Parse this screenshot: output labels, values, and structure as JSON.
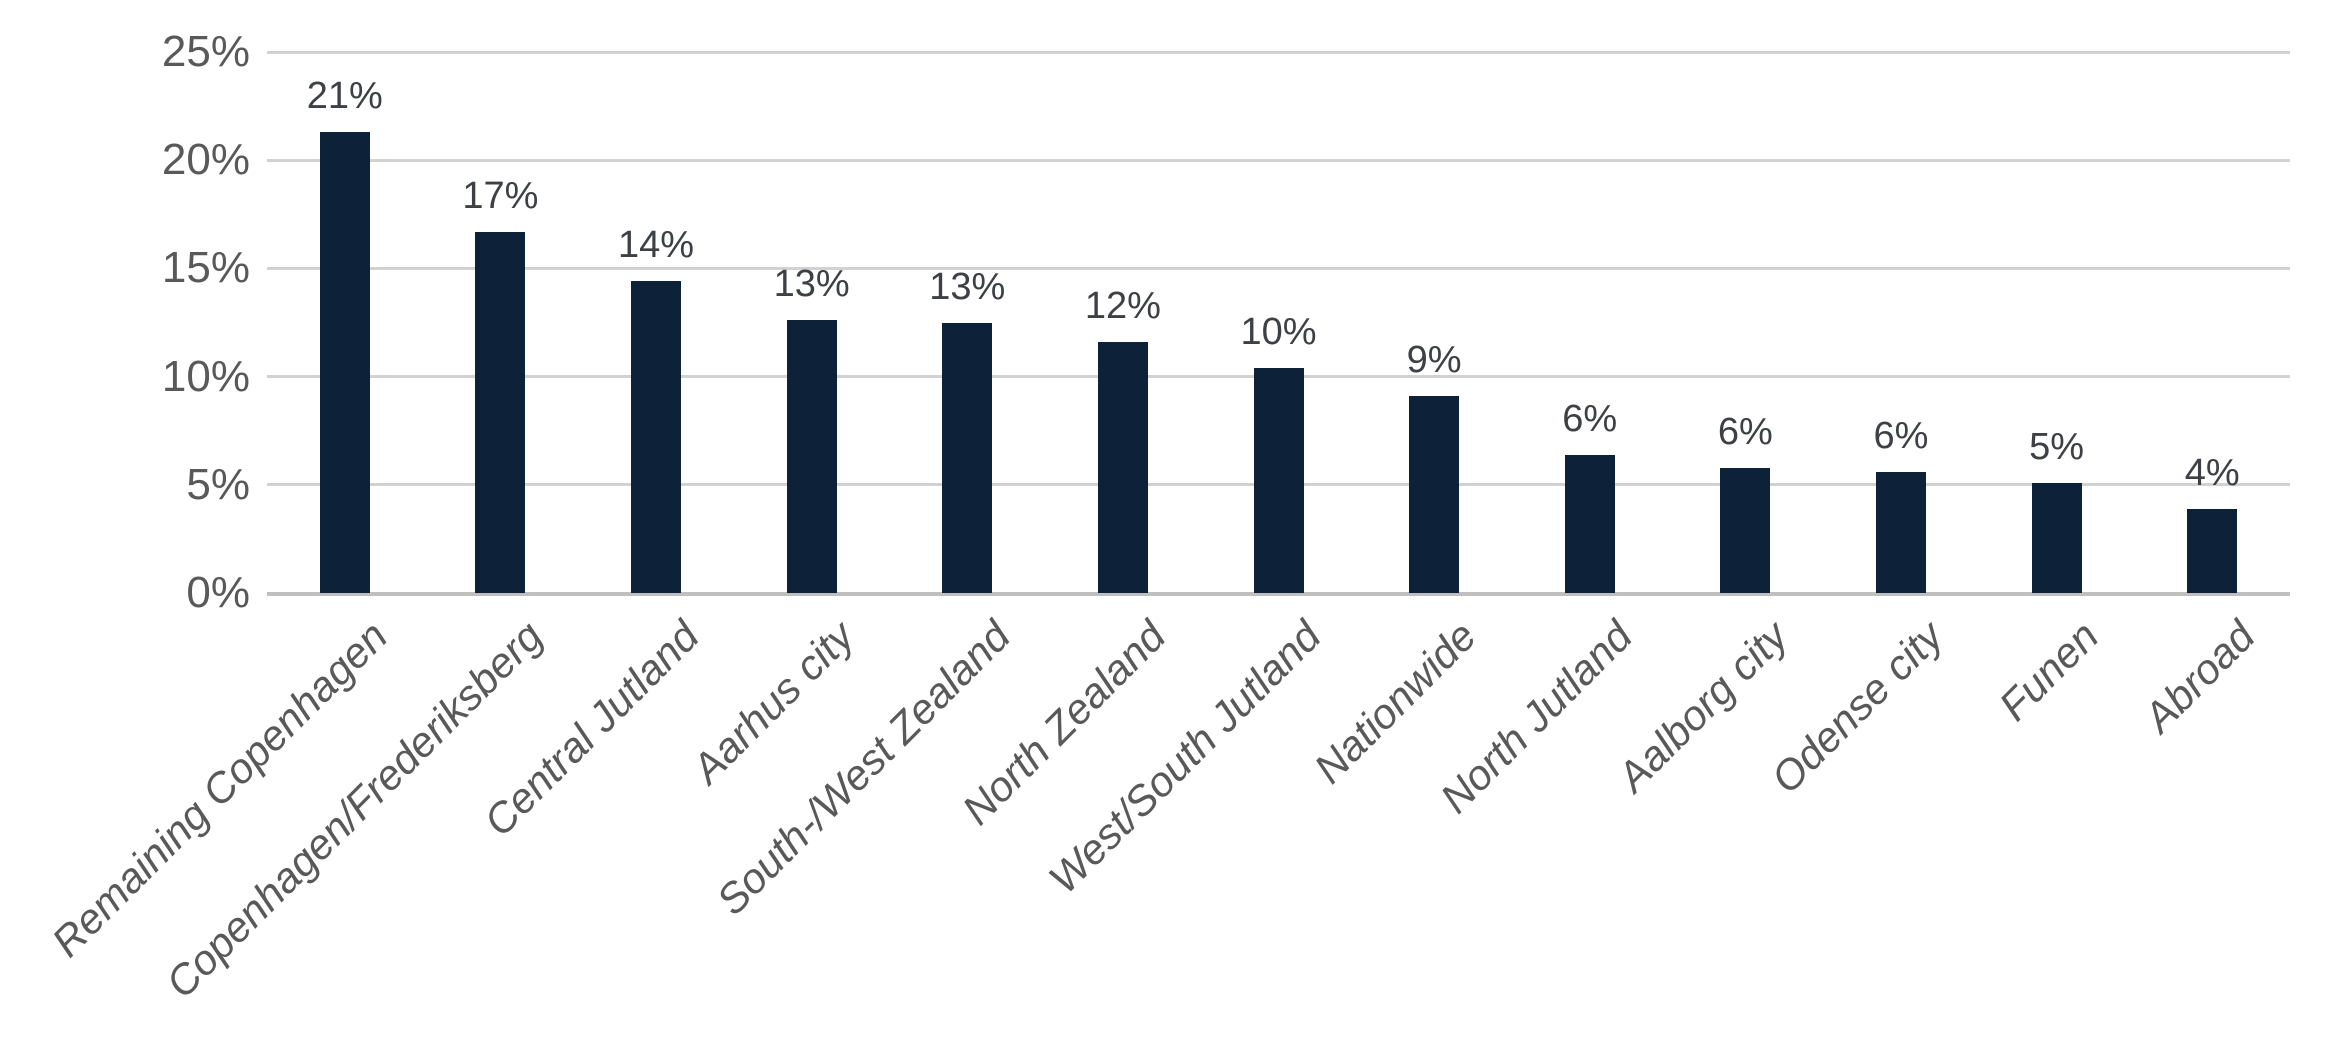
{
  "chart_data": {
    "type": "bar",
    "categories": [
      "Remaining Copenhagen",
      "Copenhagen/Frederiksberg",
      "Central Jutland",
      "Aarhus city",
      "South-/West Zealand",
      "North Zealand",
      "West/South Jutland",
      "Nationwide",
      "North Jutland",
      "Aalborg city",
      "Odense city",
      "Funen",
      "Abroad"
    ],
    "values": [
      21.3,
      16.7,
      14.4,
      12.6,
      12.5,
      11.6,
      10.4,
      9.1,
      6.4,
      5.8,
      5.6,
      5.1,
      3.9
    ],
    "data_labels": [
      "21%",
      "17%",
      "14%",
      "13%",
      "13%",
      "12%",
      "10%",
      "9%",
      "6%",
      "6%",
      "6%",
      "5%",
      "4%"
    ],
    "title": "",
    "xlabel": "",
    "ylabel": "",
    "ylim": [
      0,
      25
    ],
    "yticks": [
      {
        "value": 0,
        "label": "0%"
      },
      {
        "value": 5,
        "label": "5%"
      },
      {
        "value": 10,
        "label": "10%"
      },
      {
        "value": 15,
        "label": "15%"
      },
      {
        "value": 20,
        "label": "20%"
      },
      {
        "value": 25,
        "label": "25%"
      }
    ],
    "grid": true,
    "legend": false,
    "bar_color": "#0d2238",
    "data_label_color": "#3d4045",
    "axis_text_color": "#595959",
    "gridline_color": "#d2d2d2",
    "axis_line_color": "#bfbfbf",
    "background_color": "#ffffff"
  }
}
